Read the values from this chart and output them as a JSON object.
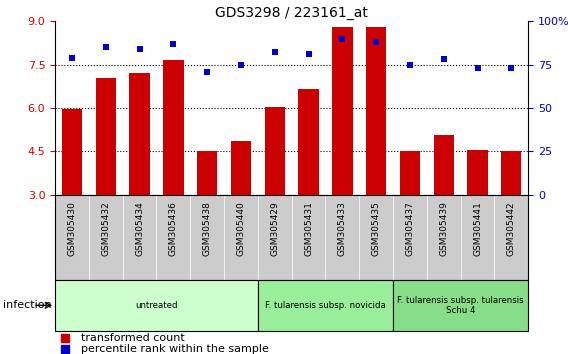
{
  "title": "GDS3298 / 223161_at",
  "samples": [
    "GSM305430",
    "GSM305432",
    "GSM305434",
    "GSM305436",
    "GSM305438",
    "GSM305440",
    "GSM305429",
    "GSM305431",
    "GSM305433",
    "GSM305435",
    "GSM305437",
    "GSM305439",
    "GSM305441",
    "GSM305442"
  ],
  "bar_values": [
    5.95,
    7.05,
    7.2,
    7.65,
    4.5,
    4.85,
    6.05,
    6.65,
    8.8,
    8.8,
    4.5,
    5.05,
    4.55,
    4.5
  ],
  "dot_values": [
    79,
    85,
    84,
    87,
    71,
    75,
    82,
    81,
    90,
    88,
    75,
    78,
    73,
    73
  ],
  "bar_color": "#cc0000",
  "dot_color": "#0000cc",
  "ylim_left": [
    3,
    9
  ],
  "ylim_right": [
    0,
    100
  ],
  "yticks_left": [
    3,
    4.5,
    6,
    7.5,
    9
  ],
  "yticks_right": [
    0,
    25,
    50,
    75,
    100
  ],
  "ytick_labels_right": [
    "0",
    "25",
    "50",
    "75",
    "100%"
  ],
  "hlines": [
    4.5,
    6.0,
    7.5
  ],
  "groups": [
    {
      "label": "untreated",
      "start": 0,
      "end": 6,
      "color": "#ccffcc"
    },
    {
      "label": "F. tularensis subsp. novicida",
      "start": 6,
      "end": 10,
      "color": "#99ee99"
    },
    {
      "label": "F. tularensis subsp. tularensis\nSchu 4",
      "start": 10,
      "end": 14,
      "color": "#88dd88"
    }
  ],
  "xlabel_group": "infection",
  "legend_bar_label": "transformed count",
  "legend_dot_label": "percentile rank within the sample",
  "bar_width": 0.6,
  "xtick_bg": "#cccccc",
  "group_colors_border": "black",
  "fig_bg": "#ffffff"
}
